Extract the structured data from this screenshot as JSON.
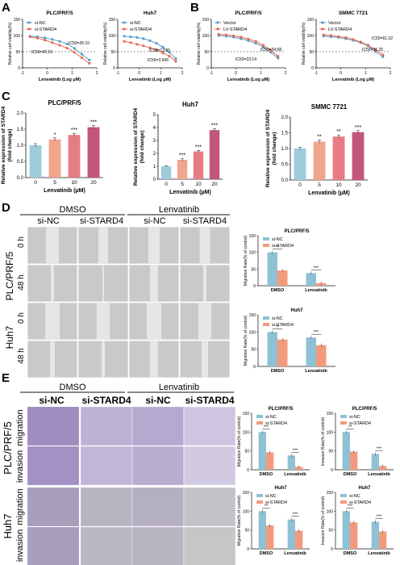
{
  "panels": {
    "A": "A",
    "B": "B",
    "C": "C",
    "D": "D",
    "E": "E"
  },
  "colors": {
    "blue": "#8fc1d4",
    "red": "#f39a7e",
    "ic_blue": "#5a9fc4",
    "ic_red": "#e46a55",
    "c_bar1": "#9ecbd9",
    "c_bar2": "#f1a58c",
    "c_bar3": "#e77d84",
    "c_bar4": "#c3577b",
    "purple": "#6b4f9c"
  },
  "common": {
    "cell_viability": "Relative cell viability(%)",
    "lenva_log": "Lenvatinib (Log μM)",
    "lenva_um": "Lenvatinib (μM)",
    "rel_expr": "Relative expression of STARD4",
    "fold": "(fold change)",
    "mig_rate": "Migration Rate(% of control)",
    "inv_rate": "Invasion Rate(% of control)",
    "si_nc": "si-NC",
    "si_stard4": "si-STARD4",
    "vector": "Vector",
    "lv_stard4": "LV-STARD4",
    "plc": "PLC/PRF/5",
    "huh7": "Huh7",
    "smmc": "SMMC 7721",
    "dmso": "DMSO",
    "lenvatinib": "Lenvatinib",
    "zero_h": "0 h",
    "fortyeight_h": "48 h",
    "migration": "migration",
    "invasion": "invasion"
  },
  "chart_data": [
    {
      "id": "A1",
      "type": "line",
      "title": "PLC/PRF/5",
      "xlabel": "Lenvatinib (Log μM)",
      "ylabel": "Relative cell viability(%)",
      "xlim": [
        -1,
        2
      ],
      "ylim": [
        0,
        150
      ],
      "xticks": [
        "-1",
        "0",
        "1",
        "2"
      ],
      "yticks": [
        "0",
        "50",
        "100",
        "150"
      ],
      "x": [
        -0.7,
        -0.4,
        -0.1,
        0.2,
        0.5,
        0.8,
        1.1,
        1.4,
        1.7
      ],
      "series": [
        {
          "name": "si-NC",
          "values": [
            98,
            96,
            93,
            88,
            82,
            74,
            60,
            42,
            24
          ]
        },
        {
          "name": "si-STARD4",
          "values": [
            96,
            92,
            86,
            78,
            70,
            61,
            48,
            31,
            14
          ]
        }
      ],
      "annotations": [
        "IC50=26.10",
        "IC50=20.19"
      ]
    },
    {
      "id": "A2",
      "type": "line",
      "title": "Huh7",
      "xlabel": "Lenvatinib (Log μM)",
      "ylabel": "Relative cell viability(%)",
      "xlim": [
        -1,
        2
      ],
      "ylim": [
        0,
        150
      ],
      "xticks": [
        "-1",
        "0",
        "1",
        "2"
      ],
      "yticks": [
        "0",
        "50",
        "100",
        "150"
      ],
      "x": [
        -0.7,
        -0.4,
        -0.1,
        0.2,
        0.5,
        0.8,
        1.1,
        1.4,
        1.7
      ],
      "series": [
        {
          "name": "si-NC",
          "values": [
            98,
            96,
            94,
            90,
            84,
            76,
            64,
            48,
            28
          ]
        },
        {
          "name": "si-STARD4",
          "values": [
            82,
            78,
            73,
            68,
            62,
            55,
            46,
            36,
            20
          ]
        }
      ],
      "annotations": [
        "IC50=13.65",
        "IC50=3.545"
      ]
    },
    {
      "id": "B1",
      "type": "line",
      "title": "PLC/PRF/5",
      "xlabel": "Lenvatinib (Log μM)",
      "ylabel": "Relative cell viability(%)",
      "xlim": [
        -1,
        2
      ],
      "ylim": [
        0,
        150
      ],
      "xticks": [
        "-1",
        "0",
        "1",
        "2"
      ],
      "yticks": [
        "0",
        "50",
        "100",
        "150"
      ],
      "x": [
        -0.7,
        -0.4,
        -0.1,
        0.2,
        0.5,
        0.8,
        1.1,
        1.4,
        1.7
      ],
      "series": [
        {
          "name": "Vector",
          "values": [
            100,
            98,
            95,
            90,
            84,
            76,
            64,
            48,
            30
          ]
        },
        {
          "name": "LV-STARD4",
          "values": [
            104,
            102,
            99,
            95,
            89,
            82,
            70,
            54,
            36
          ]
        }
      ],
      "annotations": [
        "IC50=34.68",
        "IC50=23.14"
      ]
    },
    {
      "id": "B2",
      "type": "line",
      "title": "SMMC 7721",
      "xlabel": "Lenvatinib (Log μM)",
      "ylabel": "Relative cell viability(%)",
      "xlim": [
        -1,
        2
      ],
      "ylim": [
        0,
        150
      ],
      "xticks": [
        "-1",
        "0",
        "1",
        "2"
      ],
      "yticks": [
        "0",
        "50",
        "100",
        "150"
      ],
      "x": [
        -0.7,
        -0.4,
        -0.1,
        0.2,
        0.5,
        0.8,
        1.1,
        1.4,
        1.7
      ],
      "series": [
        {
          "name": "Vector",
          "values": [
            98,
            96,
            94,
            90,
            85,
            78,
            68,
            50,
            34
          ]
        },
        {
          "name": "LV-STARD4",
          "values": [
            102,
            100,
            97,
            94,
            88,
            80,
            70,
            56,
            40
          ]
        }
      ],
      "annotations": [
        "IC50=61.32",
        "IC50=31.25"
      ]
    },
    {
      "id": "C1",
      "type": "bar",
      "title": "PLC/PRF/5",
      "xlabel": "Lenvatinib (μM)",
      "ylabel": "Relative expression of STARD4",
      "ylim": [
        0,
        2.0
      ],
      "yticks": [
        "0.0",
        "0.5",
        "1.0",
        "1.5",
        "2.0"
      ],
      "categories": [
        "0",
        "5",
        "10",
        "20"
      ],
      "values": [
        1.0,
        1.18,
        1.32,
        1.56
      ],
      "errors": [
        0.05,
        0.05,
        0.05,
        0.05
      ],
      "sig": [
        "",
        "*",
        "***",
        "***"
      ]
    },
    {
      "id": "C2",
      "type": "bar",
      "title": "Huh7",
      "xlabel": "Lenvatinib (μM)",
      "ylabel": "Relative expression of STARD4",
      "ylim": [
        0,
        5
      ],
      "yticks": [
        "0",
        "1",
        "2",
        "3",
        "4",
        "5"
      ],
      "categories": [
        "0",
        "5",
        "10",
        "20"
      ],
      "values": [
        1.0,
        1.5,
        2.15,
        3.8
      ],
      "errors": [
        0.05,
        0.08,
        0.08,
        0.1
      ],
      "sig": [
        "",
        "***",
        "***",
        "***"
      ]
    },
    {
      "id": "C3",
      "type": "bar",
      "title": "SMMC 7721",
      "xlabel": "Lenvatinib (μM)",
      "ylabel": "Relative expression of STARD4",
      "ylim": [
        0,
        2.0
      ],
      "yticks": [
        "0.0",
        "0.5",
        "1.0",
        "1.5",
        "2.0"
      ],
      "categories": [
        "0",
        "5",
        "10",
        "20"
      ],
      "values": [
        1.0,
        1.22,
        1.38,
        1.52
      ],
      "errors": [
        0.04,
        0.05,
        0.05,
        0.05
      ],
      "sig": [
        "",
        "**",
        "**",
        "***"
      ]
    },
    {
      "id": "D1",
      "type": "bar",
      "title": "PLC/PRF/5",
      "ylabel": "Migration Rate(% of control)",
      "ylim": [
        0,
        150
      ],
      "yticks": [
        "0",
        "50",
        "100",
        "150"
      ],
      "categories": [
        "DMSO",
        "Lenvatinib"
      ],
      "series": [
        {
          "name": "si-NC",
          "values": [
            100,
            38
          ]
        },
        {
          "name": "si-STARD4",
          "values": [
            46,
            8
          ]
        }
      ],
      "sig": [
        "**",
        "***"
      ]
    },
    {
      "id": "D2",
      "type": "bar",
      "title": "Huh7",
      "ylabel": "Migration Rate(% of control)",
      "ylim": [
        0,
        150
      ],
      "yticks": [
        "0",
        "50",
        "100",
        "150"
      ],
      "categories": [
        "DMSO",
        "Lenvatinib"
      ],
      "series": [
        {
          "name": "si-NC",
          "values": [
            100,
            84
          ]
        },
        {
          "name": "si-STARD4",
          "values": [
            78,
            62
          ]
        }
      ],
      "sig": [
        "**",
        "***"
      ]
    },
    {
      "id": "E1",
      "type": "bar",
      "title": "PLC/PRF/5",
      "ylabel": "Migration Rate(% of control)",
      "ylim": [
        0,
        150
      ],
      "yticks": [
        "0",
        "50",
        "100",
        "150"
      ],
      "categories": [
        "DMSO",
        "Lenvatinib"
      ],
      "series": [
        {
          "name": "si-NC",
          "values": [
            100,
            38
          ]
        },
        {
          "name": "si-STARD4",
          "values": [
            46,
            8
          ]
        }
      ],
      "sig": [
        "***",
        "***"
      ]
    },
    {
      "id": "E2",
      "type": "bar",
      "title": "PLC/PRF/5",
      "ylabel": "Invasion Rate(% of control)",
      "ylim": [
        0,
        150
      ],
      "yticks": [
        "0",
        "50",
        "100",
        "150"
      ],
      "categories": [
        "DMSO",
        "Lenvatinib"
      ],
      "series": [
        {
          "name": "si-NC",
          "values": [
            100,
            42
          ]
        },
        {
          "name": "si-STARD4",
          "values": [
            48,
            10
          ]
        }
      ],
      "sig": [
        "**",
        "***"
      ]
    },
    {
      "id": "E3",
      "type": "bar",
      "title": "Huh7",
      "ylabel": "Migration Rate(% of control)",
      "ylim": [
        0,
        150
      ],
      "yticks": [
        "0",
        "50",
        "100",
        "150"
      ],
      "categories": [
        "DMSO",
        "Lenvatinib"
      ],
      "series": [
        {
          "name": "si-NC",
          "values": [
            100,
            78
          ]
        },
        {
          "name": "si-STARD4",
          "values": [
            62,
            48
          ]
        }
      ],
      "sig": [
        "**",
        "***"
      ]
    },
    {
      "id": "E4",
      "type": "bar",
      "title": "Huh7",
      "ylabel": "Invasion Rate(% of control)",
      "ylim": [
        0,
        150
      ],
      "yticks": [
        "0",
        "50",
        "100",
        "150"
      ],
      "categories": [
        "DMSO",
        "Lenvatinib"
      ],
      "series": [
        {
          "name": "si-NC",
          "values": [
            100,
            72
          ]
        },
        {
          "name": "si-STARD4",
          "values": [
            70,
            46
          ]
        }
      ],
      "sig": [
        "***",
        "***"
      ]
    }
  ]
}
